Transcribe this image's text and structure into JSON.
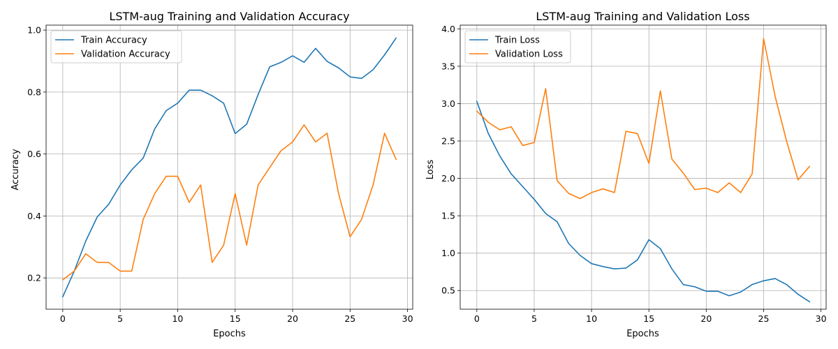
{
  "chart_data": [
    {
      "type": "line",
      "title": "LSTM-aug Training and Validation Accuracy",
      "xlabel": "Epochs",
      "ylabel": "Accuracy",
      "xlim": [
        -1.45,
        30.45
      ],
      "ylim": [
        0.099,
        1.016
      ],
      "xticks": [
        0,
        5,
        10,
        15,
        20,
        25,
        30
      ],
      "yticks": [
        0.2,
        0.4,
        0.6,
        0.8,
        1.0
      ],
      "ytick_labels": [
        "0.2",
        "0.4",
        "0.6",
        "0.8",
        "1.0"
      ],
      "grid": true,
      "legend": "top-left",
      "x": [
        0,
        1,
        2,
        3,
        4,
        5,
        6,
        7,
        8,
        9,
        10,
        11,
        12,
        13,
        14,
        15,
        16,
        17,
        18,
        19,
        20,
        21,
        22,
        23,
        24,
        25,
        26,
        27,
        28,
        29
      ],
      "series": [
        {
          "name": "Train Accuracy",
          "color": "#1f77b4",
          "values": [
            0.139,
            0.222,
            0.319,
            0.397,
            0.438,
            0.5,
            0.549,
            0.587,
            0.681,
            0.74,
            0.764,
            0.806,
            0.806,
            0.788,
            0.764,
            0.666,
            0.696,
            0.792,
            0.881,
            0.896,
            0.917,
            0.896,
            0.941,
            0.899,
            0.878,
            0.849,
            0.844,
            0.872,
            0.92,
            0.974
          ]
        },
        {
          "name": "Validation Accuracy",
          "color": "#ff7f0e",
          "values": [
            0.194,
            0.222,
            0.278,
            0.25,
            0.25,
            0.222,
            0.222,
            0.389,
            0.472,
            0.528,
            0.528,
            0.444,
            0.5,
            0.25,
            0.306,
            0.472,
            0.306,
            0.5,
            0.556,
            0.611,
            0.639,
            0.694,
            0.639,
            0.667,
            0.472,
            0.333,
            0.389,
            0.5,
            0.667,
            0.583
          ]
        }
      ]
    },
    {
      "type": "line",
      "title": "LSTM-aug Training and Validation Loss",
      "xlabel": "Epochs",
      "ylabel": "Loss",
      "xlim": [
        -1.45,
        30.45
      ],
      "ylim": [
        0.25,
        4.05
      ],
      "xticks": [
        0,
        5,
        10,
        15,
        20,
        25,
        30
      ],
      "yticks": [
        0.5,
        1.0,
        1.5,
        2.0,
        2.5,
        3.0,
        3.5,
        4.0
      ],
      "ytick_labels": [
        "0.5",
        "1.0",
        "1.5",
        "2.0",
        "2.5",
        "3.0",
        "3.5",
        "4.0"
      ],
      "grid": true,
      "legend": "top-left",
      "x": [
        0,
        1,
        2,
        3,
        4,
        5,
        6,
        7,
        8,
        9,
        10,
        11,
        12,
        13,
        14,
        15,
        16,
        17,
        18,
        19,
        20,
        21,
        22,
        23,
        24,
        25,
        26,
        27,
        28,
        29
      ],
      "series": [
        {
          "name": "Train Loss",
          "color": "#1f77b4",
          "values": [
            3.03,
            2.6,
            2.3,
            2.06,
            1.89,
            1.72,
            1.53,
            1.42,
            1.13,
            0.97,
            0.86,
            0.82,
            0.79,
            0.8,
            0.91,
            1.18,
            1.06,
            0.79,
            0.58,
            0.55,
            0.49,
            0.49,
            0.43,
            0.48,
            0.58,
            0.63,
            0.66,
            0.58,
            0.45,
            0.35
          ]
        },
        {
          "name": "Validation Loss",
          "color": "#ff7f0e",
          "values": [
            2.9,
            2.75,
            2.65,
            2.69,
            2.44,
            2.48,
            3.2,
            1.97,
            1.8,
            1.73,
            1.81,
            1.86,
            1.81,
            2.63,
            2.6,
            2.2,
            3.17,
            2.26,
            2.07,
            1.85,
            1.87,
            1.81,
            1.94,
            1.81,
            2.06,
            3.87,
            3.1,
            2.5,
            1.98,
            2.16
          ]
        }
      ]
    }
  ]
}
